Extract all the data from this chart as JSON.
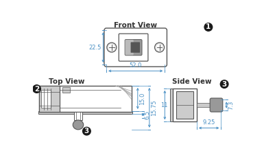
{
  "title_front": "Front View",
  "title_top": "Top View",
  "title_side": "Side View",
  "dim_width": "52.0",
  "dim_height_front": "22.5",
  "dim_15": "15.0",
  "dim_6_5": "6.5",
  "dim_15_75": "15.75",
  "dim_11": "11",
  "dim_7_3": "7.3",
  "dim_9_25": "9.25",
  "label_color": "#4A90C4",
  "outline_color": "#555555",
  "title_color": "#333333",
  "background": "#ffffff",
  "circle_label_bg": "#1a1a1a",
  "circle_label_color": "#ffffff",
  "dim_line_color": "#4A90C4",
  "gray_fill": "#999999",
  "gray_dark": "#777777",
  "light_gray": "#cccccc",
  "mid_gray": "#aaaaaa",
  "body_fill": "#f5f5f5"
}
